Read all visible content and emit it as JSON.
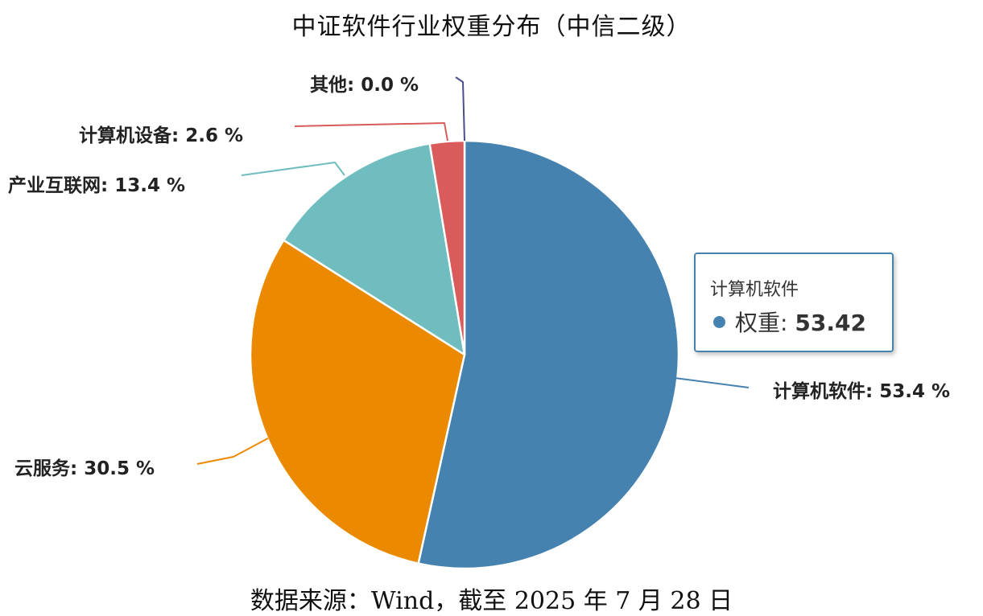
{
  "title": "中证软件行业权重分布（中信二级）",
  "source": "数据来源：Wind，截至 2025 年 7 月 28 日",
  "chart_data": {
    "type": "pie",
    "slices": [
      {
        "name": "计算机软件",
        "value": 53.42,
        "label": "计算机软件: 53.4 %",
        "color": "#4682b0"
      },
      {
        "name": "云服务",
        "value": 30.5,
        "label": "云服务: 30.5 %",
        "color": "#eb8a00"
      },
      {
        "name": "产业互联网",
        "value": 13.4,
        "label": "产业互联网: 13.4 %",
        "color": "#6fbdbf"
      },
      {
        "name": "计算机设备",
        "value": 2.6,
        "label": "计算机设备: 2.6 %",
        "color": "#d95b5b"
      },
      {
        "name": "其他",
        "value": 0.0,
        "label": "其他: 0.0 %",
        "color": "#4a4f8c"
      }
    ]
  },
  "tooltip": {
    "title": "计算机软件",
    "series": "权重",
    "separator": ": ",
    "value": "53.42"
  }
}
